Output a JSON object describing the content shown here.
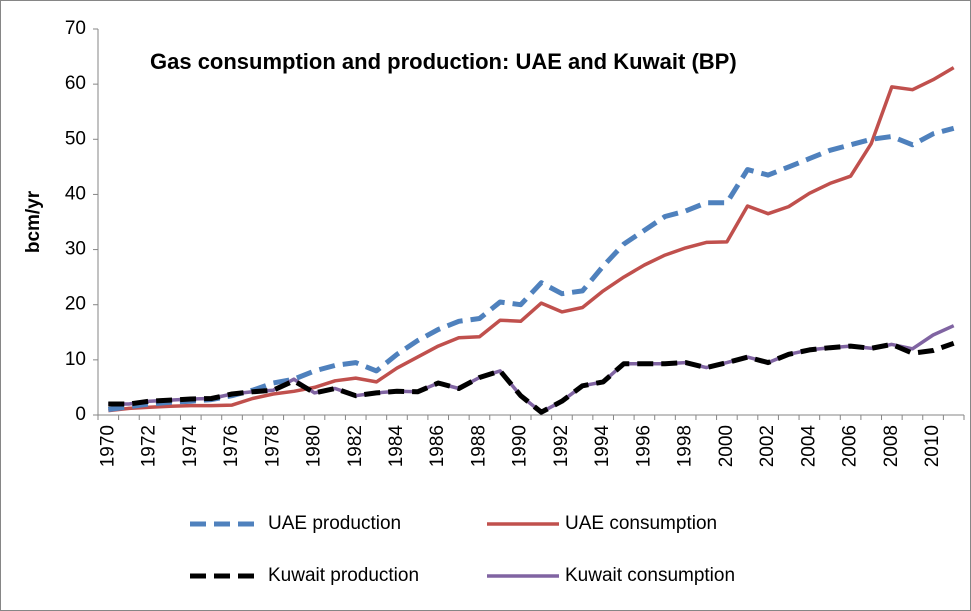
{
  "chart_data": {
    "type": "line",
    "title": "Gas consumption and production: UAE and Kuwait (BP)",
    "y_label": "bcm/yr",
    "categories": [
      "1970",
      null,
      "1972",
      null,
      "1974",
      null,
      "1976",
      null,
      "1978",
      null,
      "1980",
      null,
      "1982",
      null,
      "1984",
      null,
      "1986",
      null,
      "1988",
      null,
      "1990",
      null,
      "1992",
      null,
      "1994",
      null,
      "1996",
      null,
      "1998",
      null,
      "2000",
      null,
      "2002",
      null,
      "2004",
      null,
      "2006",
      null,
      "2008",
      null,
      "2010",
      null
    ],
    "ylim": [
      0,
      70
    ],
    "yticks": [
      0,
      10,
      20,
      30,
      40,
      50,
      60,
      70
    ],
    "grid": false,
    "legend": "bottom",
    "series": [
      {
        "name": "UAE production",
        "color": "#4f81bd",
        "dashed": true,
        "values": [
          1,
          1.5,
          2,
          2.3,
          2.5,
          2.8,
          3.5,
          4.5,
          5.8,
          6.5,
          8,
          9,
          9.5,
          8,
          11,
          13.5,
          15.5,
          17,
          17.5,
          20.5,
          20,
          24,
          22,
          22.5,
          27,
          31,
          33.5,
          36,
          37,
          38.5,
          38.5,
          44.5,
          43.5,
          45,
          46.5,
          48,
          49,
          50,
          50.5,
          49,
          51,
          52
        ]
      },
      {
        "name": "UAE consumption",
        "color": "#c0504d",
        "dashed": false,
        "values": [
          0.8,
          1.2,
          1.4,
          1.6,
          1.7,
          1.7,
          1.8,
          3,
          3.8,
          4.3,
          5,
          6.2,
          6.7,
          6,
          8.5,
          10.5,
          12.5,
          14,
          14.2,
          17.2,
          17,
          20.3,
          18.7,
          19.5,
          22.5,
          25,
          27.2,
          29,
          30.3,
          31.3,
          31.4,
          37.9,
          36.5,
          37.8,
          40.2,
          42,
          43.3,
          49.2,
          59.5,
          59,
          60.8,
          63
        ]
      },
      {
        "name": "Kuwait production",
        "color": "#000000",
        "dashed": true,
        "values": [
          2,
          2,
          2.5,
          2.7,
          2.9,
          3,
          3.8,
          4.2,
          4.5,
          6.2,
          4,
          4.8,
          3.5,
          4,
          4.3,
          4.2,
          5.8,
          4.8,
          6.8,
          8,
          3.5,
          0.5,
          2.5,
          5.3,
          6,
          9.3,
          9.3,
          9.3,
          9.5,
          8.6,
          9.5,
          10.5,
          9.5,
          11,
          11.8,
          12.2,
          12.5,
          12.1,
          12.8,
          11.2,
          11.7,
          13
        ]
      },
      {
        "name": "Kuwait consumption",
        "color": "#8064a2",
        "dashed": false,
        "values": [
          2,
          2,
          2.5,
          2.7,
          2.9,
          3,
          3.8,
          4.2,
          4.5,
          6.5,
          4,
          4.8,
          3.5,
          4,
          4.3,
          4.2,
          5.8,
          4.8,
          6.8,
          8,
          3.5,
          0.5,
          2.5,
          5.3,
          6,
          9.3,
          9.3,
          9.3,
          9.5,
          8.6,
          9.5,
          10.5,
          9.5,
          11,
          11.8,
          12.2,
          12.5,
          12.1,
          12.8,
          12,
          14.5,
          16.2
        ]
      }
    ]
  }
}
